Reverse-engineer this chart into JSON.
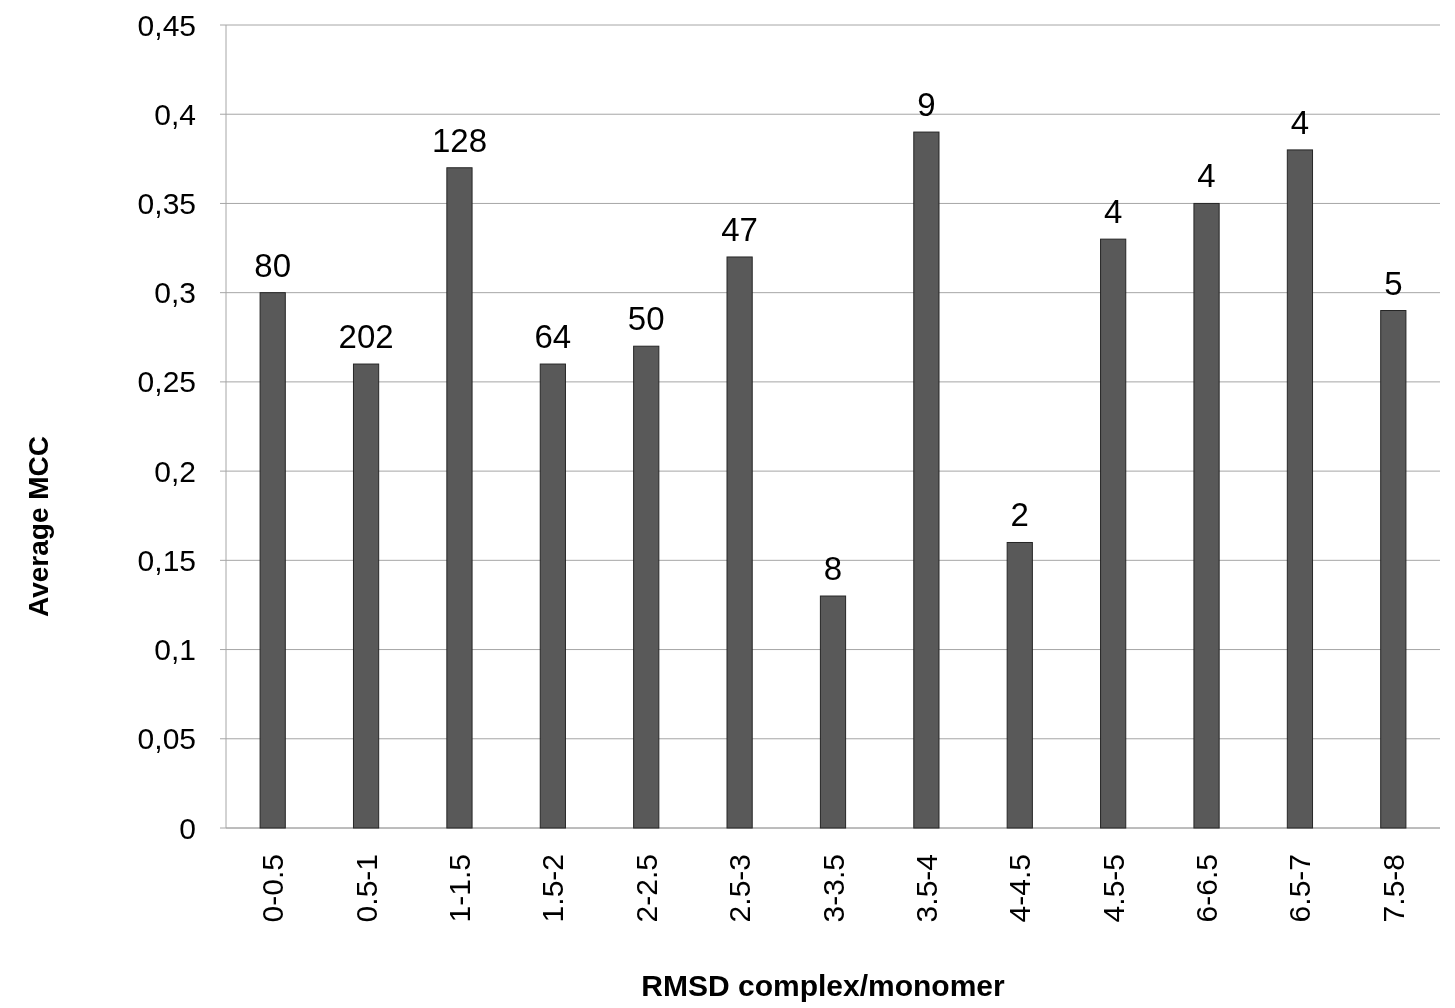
{
  "chart_data": {
    "type": "bar",
    "xlabel": "RMSD complex/monomer",
    "ylabel": "Average MCC",
    "categories": [
      "0-0.5",
      "0.5-1",
      "1-1.5",
      "1.5-2",
      "2-2.5",
      "2.5-3",
      "3-3.5",
      "3.5-4",
      "4-4.5",
      "4.5-5",
      "6-6.5",
      "6.5-7",
      "7.5-8"
    ],
    "values": [
      0.3,
      0.26,
      0.37,
      0.26,
      0.27,
      0.32,
      0.13,
      0.39,
      0.16,
      0.33,
      0.35,
      0.38,
      0.29
    ],
    "annotations": [
      {
        "text": "80",
        "x": "0-0.5",
        "y": 0.3
      },
      {
        "text": "202",
        "x": "0.5-1",
        "y": 0.26
      },
      {
        "text": "128",
        "x": "1-1.5",
        "y": 0.37
      },
      {
        "text": "64",
        "x": "1.5-2",
        "y": 0.26
      },
      {
        "text": "50",
        "x": "2-2.5",
        "y": 0.27
      },
      {
        "text": "47",
        "x": "2.5-3",
        "y": 0.32
      },
      {
        "text": "8",
        "x": "3-3.5",
        "y": 0.13
      },
      {
        "text": "9",
        "x": "3.5-4",
        "y": 0.39
      },
      {
        "text": "2",
        "x": "4-4.5",
        "y": 0.16
      },
      {
        "text": "4",
        "x": "4.5-5",
        "y": 0.33
      },
      {
        "text": "4",
        "x": "6-6.5",
        "y": 0.35
      },
      {
        "text": "4",
        "x": "6.5-7",
        "y": 0.38
      },
      {
        "text": "5",
        "x": "7.5-8",
        "y": 0.29
      }
    ],
    "color": "#595959",
    "ylim": [
      0,
      0.45
    ],
    "yticks": [
      0,
      {
        "value": 0.05,
        "label": "0,05"
      },
      {
        "value": 0.1,
        "label": "0,1"
      },
      {
        "value": 0.15,
        "label": "0,15"
      },
      {
        "value": 0.2,
        "label": "0,2"
      },
      {
        "value": 0.25,
        "label": "0,25"
      },
      {
        "value": 0.3,
        "label": "0,3"
      },
      {
        "value": 0.35,
        "label": "0,35"
      },
      {
        "value": 0.4,
        "label": "0,4"
      },
      {
        "value": 0.45,
        "label": "0,45"
      }
    ],
    "grid": "y"
  }
}
